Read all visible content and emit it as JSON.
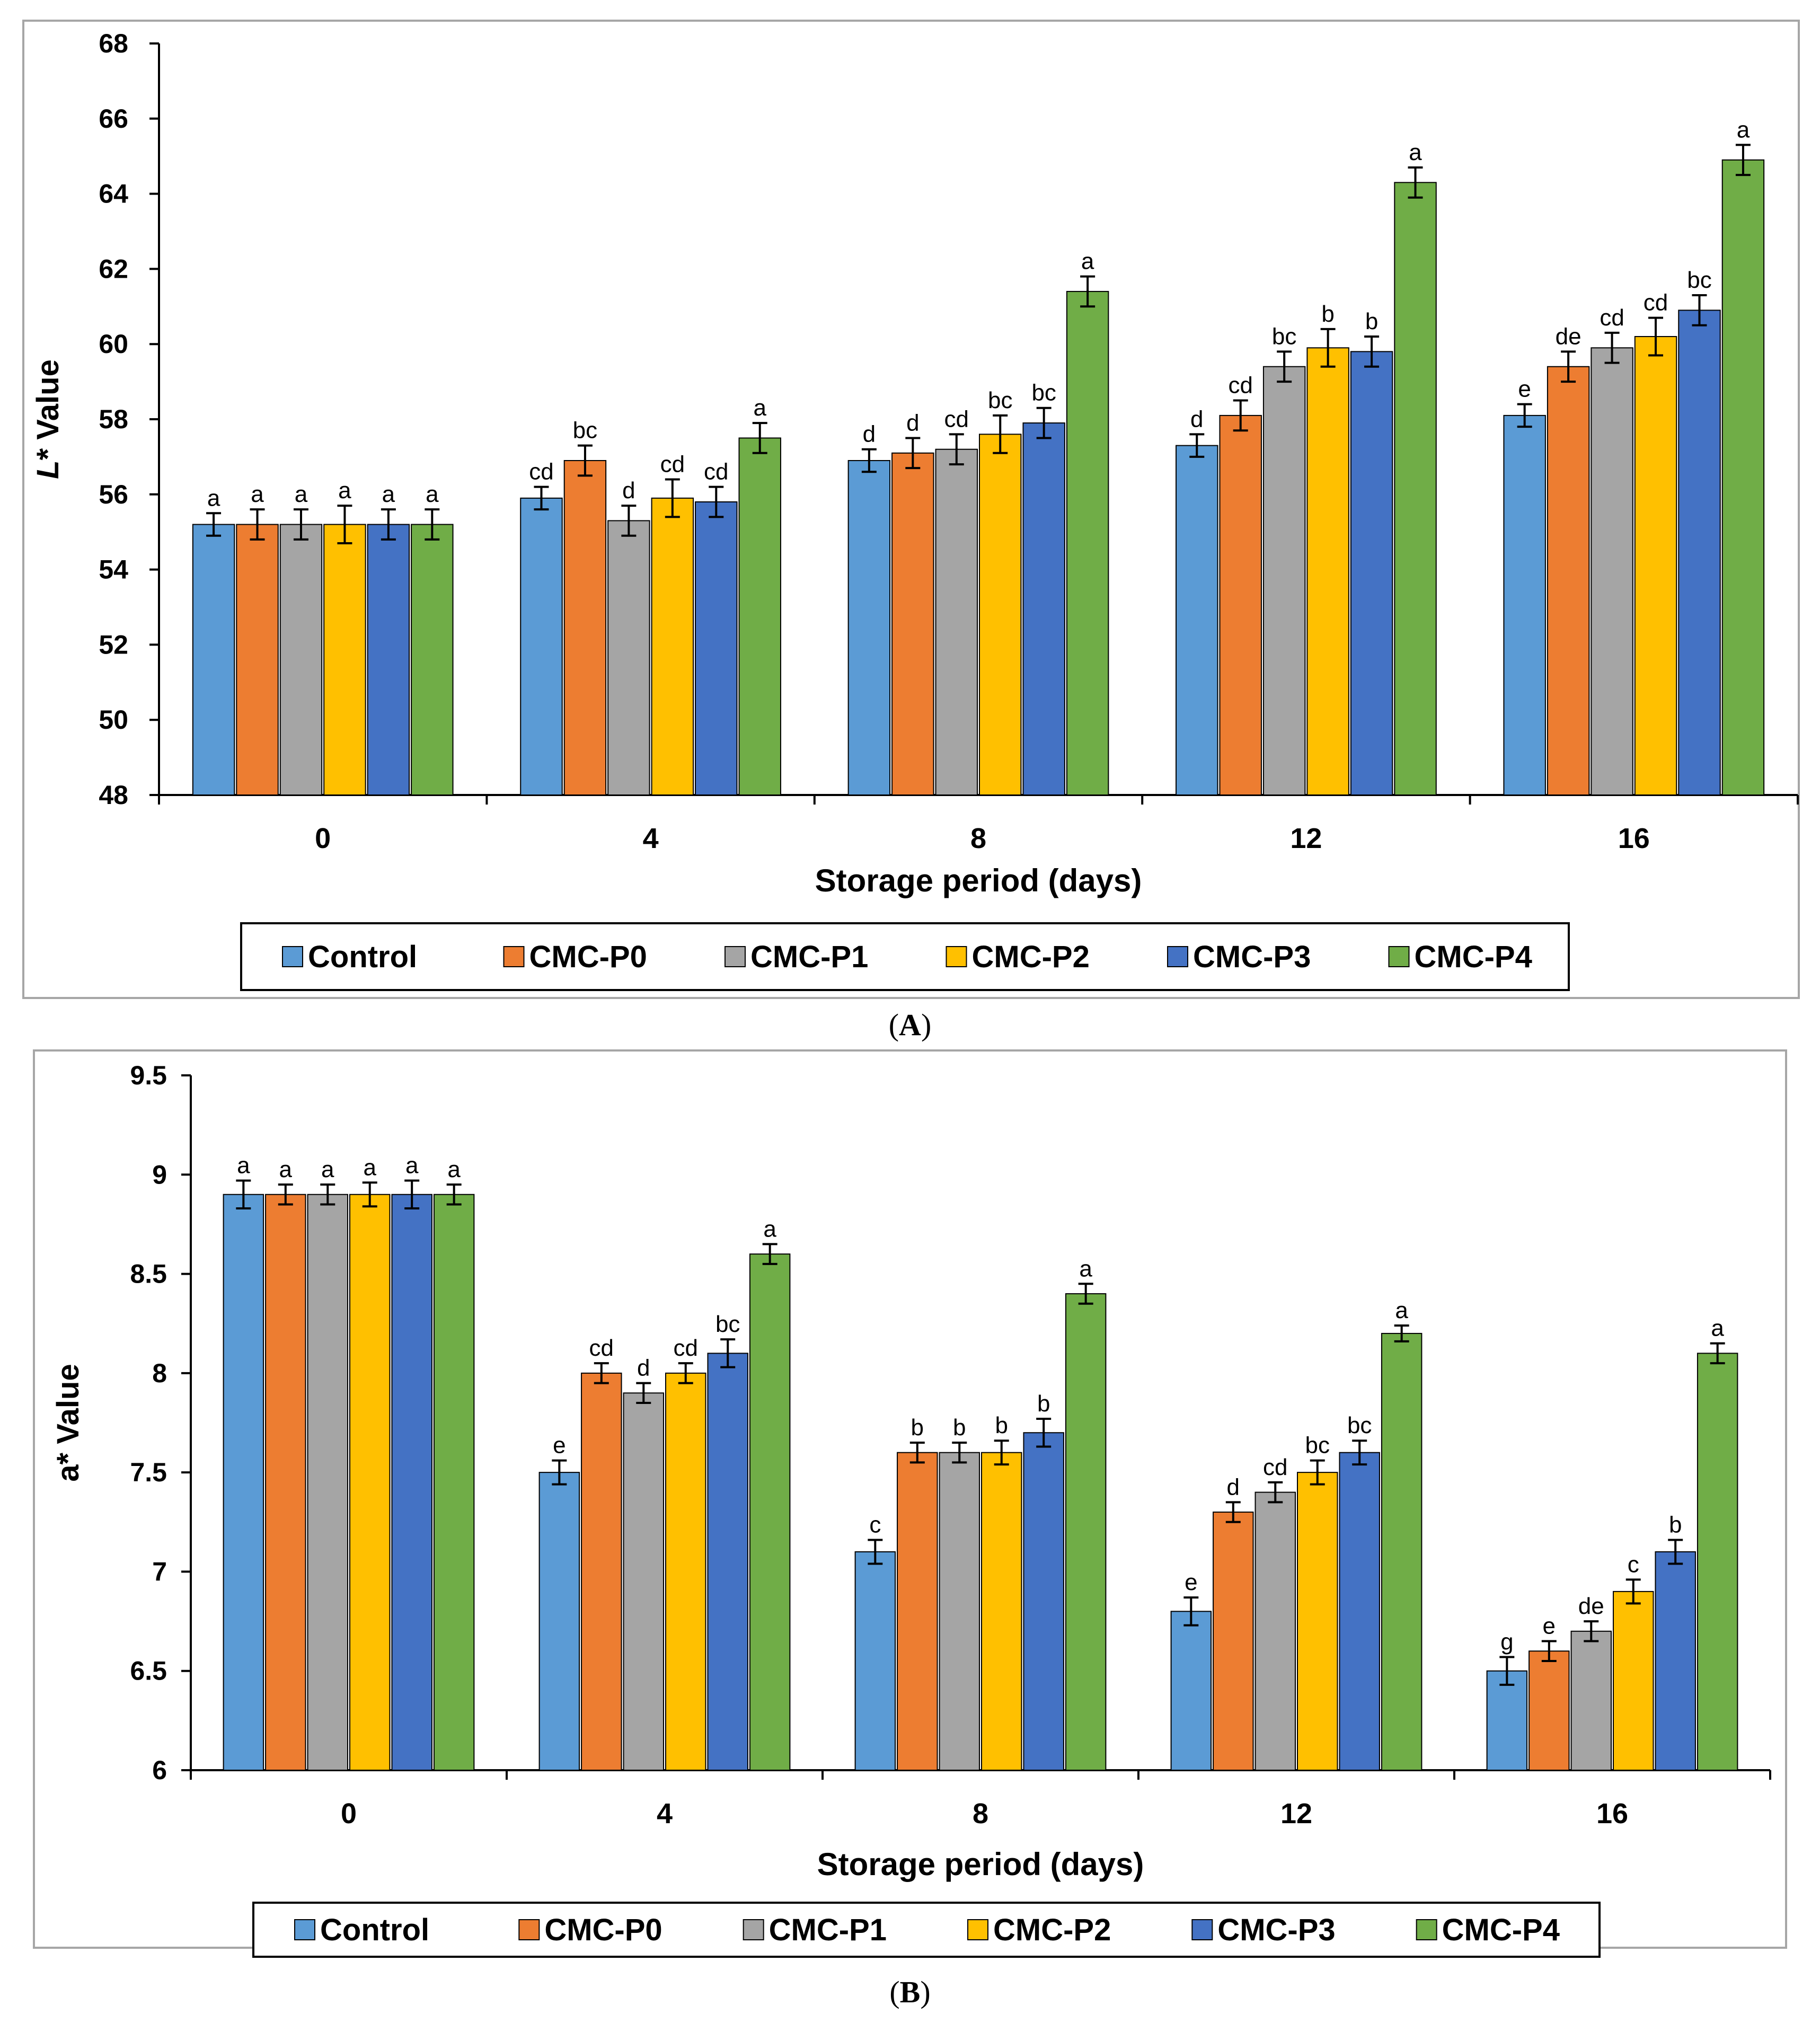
{
  "colors": {
    "Control": "#5b9bd5",
    "CMC-P0": "#ed7d31",
    "CMC-P1": "#a5a5a5",
    "CMC-P2": "#ffc000",
    "CMC-P3": "#4472c4",
    "CMC-P4": "#70ad47",
    "axis": "#000000"
  },
  "chart_data": [
    {
      "id": "A",
      "type": "bar",
      "title": "",
      "xlabel": "Storage period (days)",
      "ylabel_italic": "L",
      "ylabel_rest": "* Value",
      "categories": [
        "0",
        "4",
        "8",
        "12",
        "16"
      ],
      "ylim": [
        48,
        68
      ],
      "yticks": [
        "48",
        "50",
        "52",
        "54",
        "56",
        "58",
        "60",
        "62",
        "64",
        "66",
        "68"
      ],
      "legend_position": "bottom",
      "series": [
        {
          "name": "Control",
          "values": [
            55.2,
            55.9,
            56.9,
            57.3,
            58.1
          ],
          "errors": [
            0.3,
            0.3,
            0.3,
            0.3,
            0.3
          ],
          "letters": [
            "a",
            "cd",
            "d",
            "d",
            "e"
          ]
        },
        {
          "name": "CMC-P0",
          "values": [
            55.2,
            56.9,
            57.1,
            58.1,
            59.4
          ],
          "errors": [
            0.4,
            0.4,
            0.4,
            0.4,
            0.4
          ],
          "letters": [
            "a",
            "bc",
            "d",
            "cd",
            "de"
          ]
        },
        {
          "name": "CMC-P1",
          "values": [
            55.2,
            55.3,
            57.2,
            59.4,
            59.9
          ],
          "errors": [
            0.4,
            0.4,
            0.4,
            0.4,
            0.4
          ],
          "letters": [
            "a",
            "d",
            "cd",
            "bc",
            "cd"
          ]
        },
        {
          "name": "CMC-P2",
          "values": [
            55.2,
            55.9,
            57.6,
            59.9,
            60.2
          ],
          "errors": [
            0.5,
            0.5,
            0.5,
            0.5,
            0.5
          ],
          "letters": [
            "a",
            "cd",
            "bc",
            "b",
            "cd"
          ]
        },
        {
          "name": "CMC-P3",
          "values": [
            55.2,
            55.8,
            57.9,
            59.8,
            60.9
          ],
          "errors": [
            0.4,
            0.4,
            0.4,
            0.4,
            0.4
          ],
          "letters": [
            "a",
            "cd",
            "bc",
            "b",
            "bc"
          ]
        },
        {
          "name": "CMC-P4",
          "values": [
            55.2,
            57.5,
            61.4,
            64.3,
            64.9
          ],
          "errors": [
            0.4,
            0.4,
            0.4,
            0.4,
            0.4
          ],
          "letters": [
            "a",
            "a",
            "a",
            "a",
            "a"
          ]
        }
      ],
      "caption_prefix": "(",
      "caption_label": "A",
      "caption_suffix": ")"
    },
    {
      "id": "B",
      "type": "bar",
      "title": "",
      "xlabel": "Storage period (days)",
      "ylabel": "a* Value",
      "categories": [
        "0",
        "4",
        "8",
        "12",
        "16"
      ],
      "ylim": [
        6,
        9.5
      ],
      "yticks": [
        "6",
        "6.5",
        "7",
        "7.5",
        "8",
        "8.5",
        "9",
        "9.5"
      ],
      "legend_position": "bottom",
      "series": [
        {
          "name": "Control",
          "values": [
            8.9,
            7.5,
            7.1,
            6.8,
            6.5
          ],
          "errors": [
            0.07,
            0.06,
            0.06,
            0.07,
            0.07
          ],
          "letters": [
            "a",
            "e",
            "c",
            "e",
            "g"
          ]
        },
        {
          "name": "CMC-P0",
          "values": [
            8.9,
            8.0,
            7.6,
            7.3,
            6.6
          ],
          "errors": [
            0.05,
            0.05,
            0.05,
            0.05,
            0.05
          ],
          "letters": [
            "a",
            "cd",
            "b",
            "d",
            "e"
          ]
        },
        {
          "name": "CMC-P1",
          "values": [
            8.9,
            7.9,
            7.6,
            7.4,
            6.7
          ],
          "errors": [
            0.05,
            0.05,
            0.05,
            0.05,
            0.05
          ],
          "letters": [
            "a",
            "d",
            "b",
            "cd",
            "de"
          ]
        },
        {
          "name": "CMC-P2",
          "values": [
            8.9,
            8.0,
            7.6,
            7.5,
            6.9
          ],
          "errors": [
            0.06,
            0.05,
            0.06,
            0.06,
            0.06
          ],
          "letters": [
            "a",
            "cd",
            "b",
            "bc",
            "c"
          ]
        },
        {
          "name": "CMC-P3",
          "values": [
            8.9,
            8.1,
            7.7,
            7.6,
            7.1
          ],
          "errors": [
            0.07,
            0.07,
            0.07,
            0.06,
            0.06
          ],
          "letters": [
            "a",
            "bc",
            "b",
            "bc",
            "b"
          ]
        },
        {
          "name": "CMC-P4",
          "values": [
            8.9,
            8.6,
            8.4,
            8.2,
            8.1
          ],
          "errors": [
            0.05,
            0.05,
            0.05,
            0.04,
            0.05
          ],
          "letters": [
            "a",
            "a",
            "a",
            "a",
            "a"
          ]
        }
      ],
      "caption_prefix": "(",
      "caption_label": "B",
      "caption_suffix": ")"
    }
  ]
}
